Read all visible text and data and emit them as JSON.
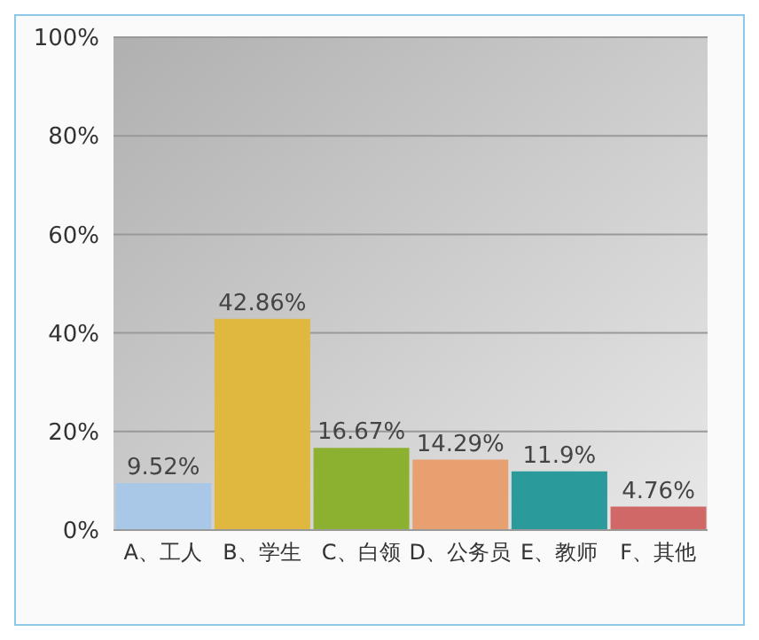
{
  "chart_data": {
    "type": "bar",
    "categories": [
      "A、工人",
      "B、学生",
      "C、白领",
      "D、公务员",
      "E、教师",
      "F、其他"
    ],
    "values": [
      9.52,
      42.86,
      16.67,
      14.29,
      11.9,
      4.76
    ],
    "colors": [
      "#a9c8e8",
      "#e0b840",
      "#8cb030",
      "#e8a070",
      "#2a9a9a",
      "#d06868"
    ],
    "value_labels": [
      "9.52%",
      "42.86%",
      "16.67%",
      "14.29%",
      "11.9%",
      "4.76%"
    ],
    "ylim": [
      0,
      100
    ],
    "yticks": [
      {
        "value": 0,
        "label": "0%"
      },
      {
        "value": 20,
        "label": "20%"
      },
      {
        "value": 40,
        "label": "40%"
      },
      {
        "value": 60,
        "label": "60%"
      },
      {
        "value": 80,
        "label": "80%"
      },
      {
        "value": 100,
        "label": "100%"
      }
    ],
    "grid": "y"
  }
}
